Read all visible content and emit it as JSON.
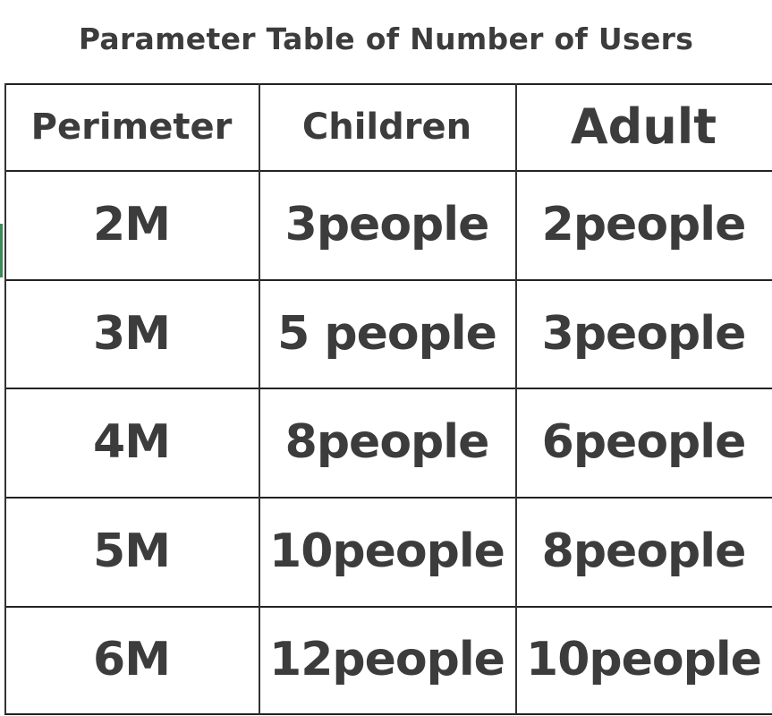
{
  "title": "Parameter Table of Number of Users",
  "headers": [
    "Perimeter",
    "Children",
    "Adult"
  ],
  "rows": [
    [
      "2M",
      "3people",
      "2people"
    ],
    [
      "3M",
      "5 people",
      "3people"
    ],
    [
      "4M",
      "8people",
      "6people"
    ],
    [
      "5M",
      "10people",
      "8people"
    ],
    [
      "6M",
      "12people",
      "10people"
    ]
  ],
  "colors": {
    "text": "#3c3c3c",
    "lines": "#222222"
  }
}
